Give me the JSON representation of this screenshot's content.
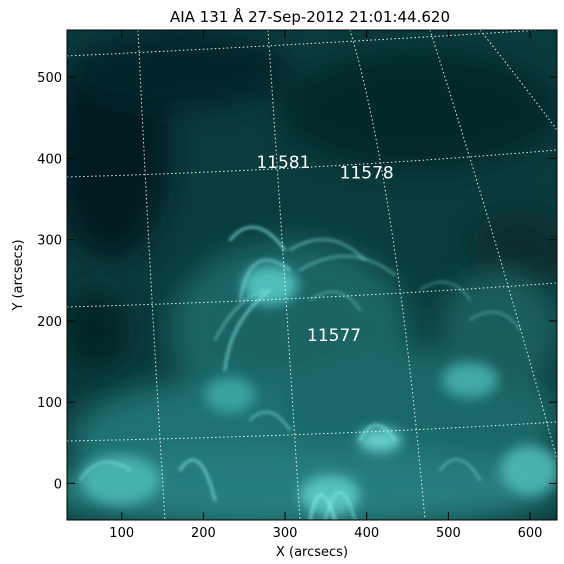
{
  "title": "AIA 131 Å 27-Sep-2012 21:01:44.620",
  "x_axis": {
    "label": "X (arcsecs)",
    "range": [
      33,
      633
    ],
    "ticks": [
      100,
      200,
      300,
      400,
      500,
      600
    ]
  },
  "y_axis": {
    "label": "Y (arcsecs)",
    "range": [
      -45,
      558
    ],
    "ticks": [
      0,
      100,
      200,
      300,
      400,
      500
    ]
  },
  "colors": {
    "image_base": "#0a3f40",
    "image_dark": "#04201f",
    "image_bright": "#8af2ee",
    "grid": "#ffffff",
    "axes": "#000000"
  },
  "active_regions": [
    {
      "label": "11581",
      "x": 298,
      "y": 388
    },
    {
      "label": "11578",
      "x": 400,
      "y": 375
    },
    {
      "label": "11577",
      "x": 360,
      "y": 175
    }
  ],
  "image_description": "SDO/AIA 131 Å solar EUV image, teal colour table, bright coronal loops and dotted heliographic grid"
}
